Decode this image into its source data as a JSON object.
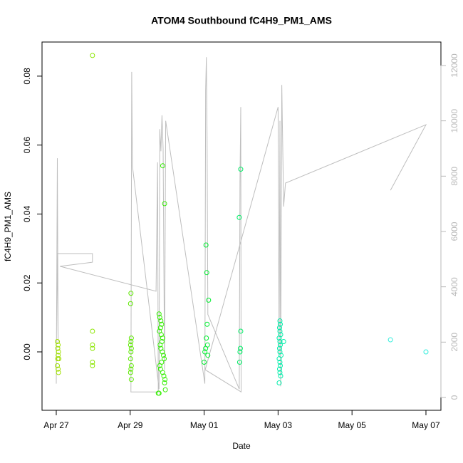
{
  "chart_data": {
    "type": "scatter",
    "title": "ATOM4 Southbound fC4H9_PM1_AMS",
    "x_label": "Date",
    "y_label": "fC4H9_PM1_AMS",
    "xlim": [
      -0.385,
      10.405
    ],
    "xticks": [
      {
        "value": 0,
        "label": "Apr 27"
      },
      {
        "value": 2,
        "label": "Apr 29"
      },
      {
        "value": 4,
        "label": "May 01"
      },
      {
        "value": 6,
        "label": "May 03"
      },
      {
        "value": 8,
        "label": "May 05"
      },
      {
        "value": 10,
        "label": "May 07"
      }
    ],
    "ylim": [
      -0.01695,
      0.0899
    ],
    "yticks": [
      {
        "value": 0,
        "label": "0.00"
      },
      {
        "value": 0.02,
        "label": "0.02"
      },
      {
        "value": 0.04,
        "label": "0.04"
      },
      {
        "value": 0.06,
        "label": "0.06"
      },
      {
        "value": 0.08,
        "label": "0.08"
      }
    ],
    "y2lim": [
      -464,
      12849
    ],
    "y2ticks": [
      0,
      2000,
      4000,
      6000,
      8000,
      10000,
      12000
    ],
    "line_color": "#bebebe",
    "series": [
      {
        "color": "#a0e000",
        "x": [
          0.03,
          0.05,
          0.04,
          0.06,
          0.05,
          0.07,
          0.04,
          0.05,
          0.06,
          0.03
        ],
        "values": [
          0.003,
          0.002,
          0.001,
          0,
          -0.001,
          -0.002,
          -0.002,
          -0.005,
          -0.006,
          -0.004
        ]
      },
      {
        "color": "#8be600",
        "x": [
          0.98,
          0.98,
          0.98,
          0.98,
          0.98,
          0.98
        ],
        "values": [
          0.086,
          0.006,
          0.002,
          0.001,
          -0.003,
          -0.004
        ]
      },
      {
        "color": "#5de800",
        "x": [
          2.02,
          2.01,
          2.03,
          2.02,
          2.01,
          2.03,
          2.02,
          2.01,
          2.03,
          2.02,
          2.01,
          2.03
        ],
        "values": [
          0.017,
          0.014,
          0.004,
          0.003,
          0.002,
          0.001,
          0,
          -0.002,
          -0.004,
          -0.005,
          -0.006,
          -0.008
        ]
      },
      {
        "color": "#33ee00",
        "x": [
          2.88,
          2.93,
          2.78,
          2.8,
          2.83,
          2.85,
          2.82,
          2.79,
          2.84,
          2.88,
          2.86,
          2.81,
          2.83,
          2.87,
          2.9,
          2.92,
          2.85,
          2.8,
          2.82,
          2.88,
          2.91,
          2.94,
          2.95,
          2.93,
          2.76,
          2.78
        ],
        "values": [
          0.054,
          0.043,
          0.011,
          0.01,
          0.009,
          0.008,
          0.007,
          0.006,
          0.005,
          0.004,
          0.003,
          0.002,
          0.001,
          0,
          -0.001,
          -0.002,
          -0.003,
          -0.004,
          -0.005,
          -0.006,
          -0.007,
          -0.008,
          -0.011,
          -0.009,
          -0.012,
          -0.012
        ]
      },
      {
        "color": "#00ee30",
        "x": [
          4.05,
          4.07,
          4.12,
          4.08,
          4.06,
          4.09,
          4.04,
          4.02,
          4.1,
          4.0
        ],
        "values": [
          0.031,
          0.023,
          0.015,
          0.008,
          0.004,
          0.002,
          0.001,
          0,
          -0.001,
          -0.003
        ]
      },
      {
        "color": "#00ee66",
        "x": [
          4.99,
          4.95,
          4.99,
          4.98,
          4.97,
          4.96
        ],
        "values": [
          0.053,
          0.039,
          0.006,
          0.001,
          0,
          -0.003
        ]
      },
      {
        "color": "#00eeaa",
        "x": [
          6.05,
          6.06,
          6.04,
          6.05,
          6.07,
          6.03,
          6.05,
          6.06,
          6.04,
          6.05,
          6.08,
          6.03,
          6.05,
          6.06,
          6.04,
          6.05,
          6.07,
          6.03,
          6.15
        ],
        "values": [
          0.009,
          0.008,
          0.007,
          0.006,
          0.005,
          0.004,
          0.003,
          0.002,
          0.001,
          0,
          -0.001,
          -0.002,
          -0.003,
          -0.004,
          -0.005,
          -0.006,
          -0.007,
          -0.009,
          0.003
        ]
      },
      {
        "color": "#33eedd",
        "x": [
          9.04,
          10.0
        ],
        "values": [
          0.0035,
          0
        ]
      }
    ],
    "line": {
      "axis": "y2",
      "x": [
        0.0,
        0.03,
        0.05,
        0.02,
        0.98,
        0.98,
        0.1,
        2.7,
        2.74,
        2.76,
        2.02,
        2.04,
        2.06,
        2.78,
        2.8,
        2.83,
        2.86,
        2.89,
        2.93,
        2.96,
        4.02,
        4.04,
        4.06,
        4.08,
        4.1,
        4.95,
        4.97,
        4.99,
        5.0,
        4.03,
        6.0,
        6.03,
        6.05,
        6.07,
        6.1,
        6.15,
        6.2,
        10.0,
        9.04
      ],
      "values": [
        500,
        8650,
        2000,
        5200,
        5200,
        4890,
        4740,
        3840,
        8500,
        200,
        200,
        11770,
        8370,
        300,
        9700,
        8900,
        10200,
        9000,
        1000,
        10000,
        500,
        11100,
        12300,
        9400,
        3000,
        300,
        7800,
        10500,
        200,
        1000,
        10500,
        1500,
        10000,
        400,
        11300,
        6900,
        7750,
        9860,
        7490
      ]
    }
  }
}
